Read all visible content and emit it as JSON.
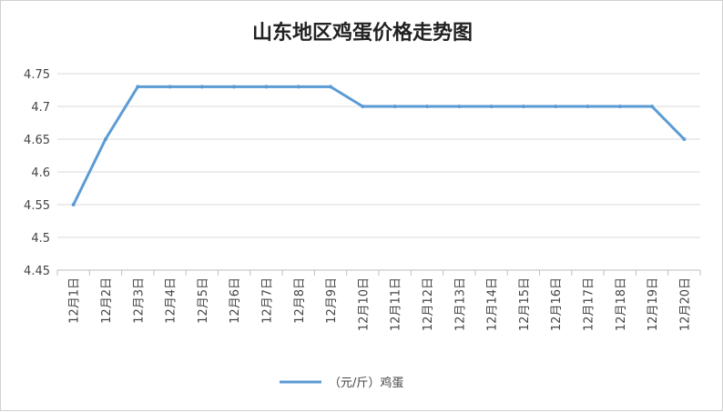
{
  "chart_data": {
    "type": "line",
    "title": "山东地区鸡蛋价格走势图",
    "categories": [
      "12月1日",
      "12月2日",
      "12月3日",
      "12月4日",
      "12月5日",
      "12月6日",
      "12月7日",
      "12月8日",
      "12月9日",
      "12月10日",
      "12月11日",
      "12月12日",
      "12月13日",
      "12月14日",
      "12月15日",
      "12月16日",
      "12月17日",
      "12月18日",
      "12月19日",
      "12月20日"
    ],
    "series": [
      {
        "name": "（元/斤）鸡蛋",
        "color": "#5b9bd5",
        "values": [
          4.55,
          4.65,
          4.73,
          4.73,
          4.73,
          4.73,
          4.73,
          4.73,
          4.73,
          4.7,
          4.7,
          4.7,
          4.7,
          4.7,
          4.7,
          4.7,
          4.7,
          4.7,
          4.7,
          4.65
        ]
      }
    ],
    "ylim": [
      4.45,
      4.75
    ],
    "yticks": [
      "4.45",
      "4.5",
      "4.55",
      "4.6",
      "4.65",
      "4.7",
      "4.75"
    ],
    "grid": true,
    "legend_position": "bottom"
  }
}
